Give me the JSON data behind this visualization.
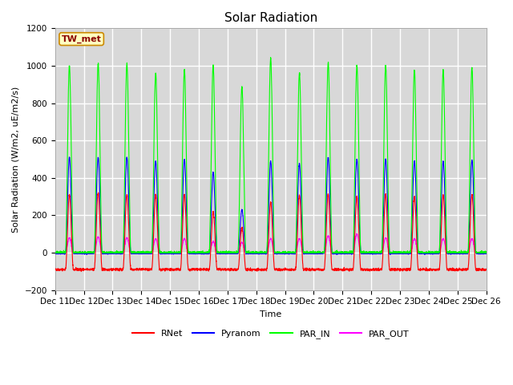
{
  "title": "Solar Radiation",
  "ylabel": "Solar Radiation (W/m2, uE/m2/s)",
  "xlabel": "Time",
  "ylim": [
    -200,
    1200
  ],
  "yticks": [
    -200,
    0,
    200,
    400,
    600,
    800,
    1000,
    1200
  ],
  "xtick_labels": [
    "Dec 11",
    "Dec 12",
    "Dec 13",
    "Dec 14",
    "Dec 15",
    "Dec 16",
    "Dec 17",
    "Dec 18",
    "Dec 19",
    "Dec 20",
    "Dec 21",
    "Dec 22",
    "Dec 23",
    "Dec 24",
    "Dec 25",
    "Dec 26"
  ],
  "station_label": "TW_met",
  "legend_entries": [
    "RNet",
    "Pyranom",
    "PAR_IN",
    "PAR_OUT"
  ],
  "line_colors": [
    "red",
    "blue",
    "lime",
    "magenta"
  ],
  "fig_bg_color": "#ffffff",
  "plot_bg_color": "#d8d8d8",
  "grid_color": "#ffffff",
  "daily_peaks": {
    "RNet": [
      310,
      320,
      310,
      310,
      310,
      220,
      135,
      270,
      310,
      310,
      300,
      310,
      300,
      310,
      310
    ],
    "Pyranom": [
      510,
      510,
      510,
      490,
      500,
      430,
      230,
      490,
      475,
      510,
      500,
      500,
      490,
      490,
      495
    ],
    "PAR_IN": [
      1000,
      1010,
      1010,
      960,
      980,
      1000,
      890,
      1040,
      960,
      1020,
      1000,
      1000,
      975,
      975,
      990
    ],
    "PAR_OUT": [
      80,
      85,
      80,
      75,
      75,
      60,
      55,
      75,
      75,
      90,
      100,
      80,
      75,
      75,
      75
    ]
  },
  "RNet_night": -90,
  "Pyranom_night": -3,
  "PAR_IN_night": 0,
  "PAR_OUT_night": 0,
  "title_fontsize": 11,
  "label_fontsize": 8,
  "tick_fontsize": 7.5
}
